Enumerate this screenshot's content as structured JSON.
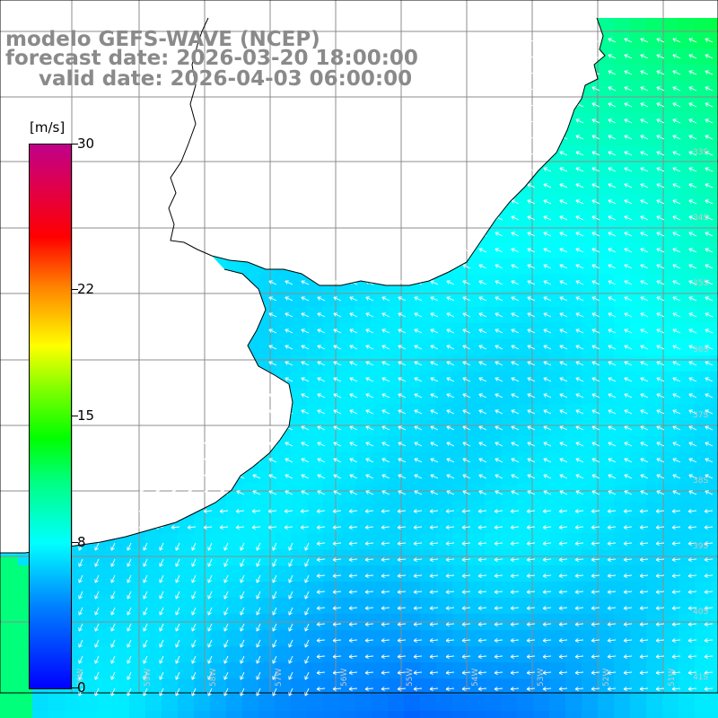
{
  "title": {
    "line1": "modelo GEFS-WAVE (NCEP)",
    "line2": "forecast date: 2026-03-20 18:00:00",
    "line3": "valid date: 2026-04-03 06:00:00"
  },
  "colorbar": {
    "unit": "[m/s]",
    "ticks": [
      {
        "label": "30",
        "value": 30
      },
      {
        "label": "22",
        "value": 22
      },
      {
        "label": "15",
        "value": 15
      },
      {
        "label": "8",
        "value": 8
      },
      {
        "label": "0",
        "value": 0
      }
    ],
    "range": [
      0,
      30
    ]
  },
  "map": {
    "lat_labels": [
      "33S",
      "34S",
      "35S",
      "36S",
      "37S",
      "38S",
      "39S",
      "40S",
      "41S"
    ],
    "lon_labels": [
      "60W",
      "59W",
      "58W",
      "57W",
      "56W",
      "55W",
      "54W",
      "53W",
      "52W",
      "51W"
    ],
    "colors": {
      "land": "#ffffff",
      "grid": "#8c8c8c",
      "coast": "#000000",
      "arrows": "#ffffff"
    }
  }
}
